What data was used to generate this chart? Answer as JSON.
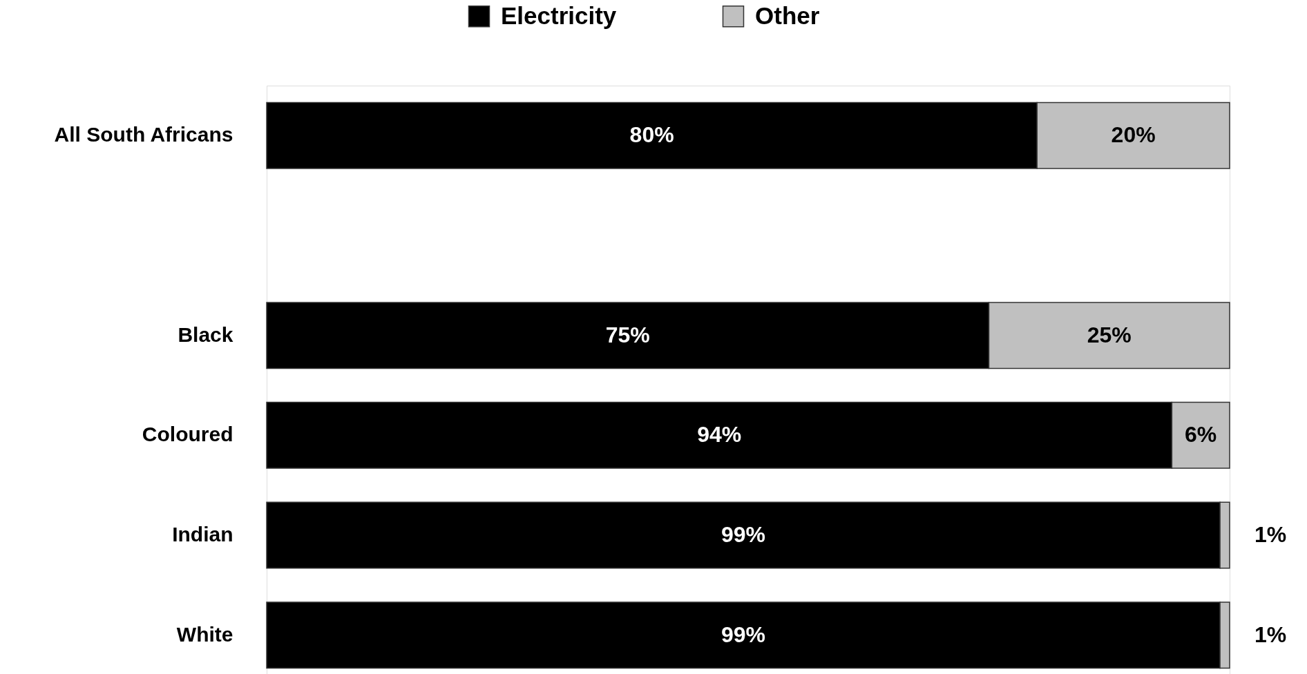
{
  "chart_data": {
    "type": "bar",
    "orientation": "horizontal",
    "stacked": true,
    "categories": [
      "All South Africans",
      null,
      "Black",
      "Coloured",
      "Indian",
      "White"
    ],
    "series": [
      {
        "name": "Electricity",
        "color": "#000000",
        "values": [
          80,
          null,
          75,
          94,
          99,
          99
        ],
        "value_labels": [
          "80%",
          null,
          "75%",
          "94%",
          "99%",
          "99%"
        ]
      },
      {
        "name": "Other",
        "color": "#c0c0c0",
        "values": [
          20,
          null,
          25,
          6,
          1,
          1
        ],
        "value_labels": [
          "20%",
          null,
          "25%",
          "6%",
          "1%",
          "1%"
        ]
      }
    ],
    "xlim": [
      0,
      100
    ],
    "tick_labels": "y",
    "legend": "top"
  }
}
